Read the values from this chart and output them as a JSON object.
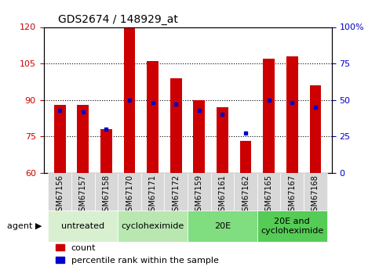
{
  "title": "GDS2674 / 148929_at",
  "samples": [
    "GSM67156",
    "GSM67157",
    "GSM67158",
    "GSM67170",
    "GSM67171",
    "GSM67172",
    "GSM67159",
    "GSM67161",
    "GSM67162",
    "GSM67165",
    "GSM67167",
    "GSM67168"
  ],
  "counts": [
    88,
    88,
    78,
    120,
    106,
    99,
    90,
    87,
    73,
    107,
    108,
    96
  ],
  "percentile_ranks": [
    43,
    42,
    30,
    50,
    48,
    47,
    43,
    40,
    27,
    50,
    48,
    45
  ],
  "ylim": [
    60,
    120
  ],
  "yticks_left": [
    60,
    75,
    90,
    105,
    120
  ],
  "yticks_right": [
    0,
    25,
    50,
    75,
    100
  ],
  "bar_color": "#CC0000",
  "dot_color": "#0000CC",
  "bar_width": 0.5,
  "groups": [
    {
      "label": "untreated",
      "indices": [
        0,
        1,
        2
      ],
      "color": "#d8f0d0"
    },
    {
      "label": "cycloheximide",
      "indices": [
        3,
        4,
        5
      ],
      "color": "#b8e8b0"
    },
    {
      "label": "20E",
      "indices": [
        6,
        7,
        8
      ],
      "color": "#80dd80"
    },
    {
      "label": "20E and\ncycloheximide",
      "indices": [
        9,
        10,
        11
      ],
      "color": "#55cc55"
    }
  ],
  "agent_label": "agent",
  "legend_count_label": "count",
  "legend_pct_label": "percentile rank within the sample",
  "background_color": "#ffffff",
  "plot_bg_color": "#ffffff",
  "tick_label_color_left": "#CC0000",
  "tick_label_color_right": "#0000CC",
  "title_fontsize": 10,
  "axis_fontsize": 8,
  "tick_fontsize": 7,
  "legend_fontsize": 8,
  "group_label_fontsize": 8,
  "xtick_bg_color": "#d8d8d8",
  "grid_lines": [
    75,
    90,
    105
  ]
}
